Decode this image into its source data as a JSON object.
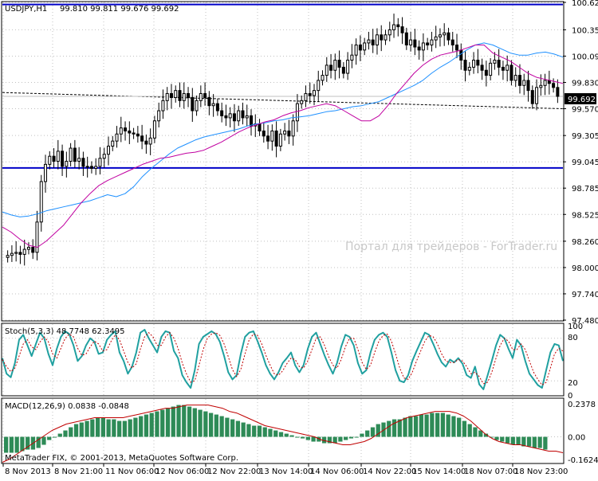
{
  "colors": {
    "background": "#ffffff",
    "grid": "#c0c0c0",
    "bull": "#ffffff",
    "bear": "#000000",
    "ma_fast": "#c000a0",
    "ma_slow": "#1e90ff",
    "hline": "#0000c8",
    "stoch_main": "#20a0a0",
    "stoch_signal": "#c00000",
    "macd_hist": "#2e8b57",
    "macd_signal": "#c00000",
    "price_label_bg": "#000000",
    "price_label_fg": "#ffffff",
    "watermark": "#c8c8c8"
  },
  "header": {
    "symbol_tf": "USDJPY,H1",
    "ohlc": "99.810 99.811 99.676 99.692"
  },
  "watermark": "Портал для трейдеров - ForTrader.ru",
  "copyright": "MetaTrader FIX, © 2001-2013, MetaQuotes Software Corp.",
  "chart_data": [
    {
      "type": "candlestick",
      "panel": "main",
      "title": "USDJPY,H1",
      "ylim": [
        97.48,
        100.621
      ],
      "y_ticks": [
        "100.621",
        "100.350",
        "100.090",
        "99.830",
        "99.570",
        "99.305",
        "99.045",
        "98.785",
        "98.525",
        "98.260",
        "98.000",
        "97.740",
        "97.480"
      ],
      "x_labels": [
        "8 Nov 2013",
        "8 Nov 21:00",
        "11 Nov 06:00",
        "12 Nov 06:00",
        "12 Nov 22:00",
        "13 Nov 14:00",
        "14 Nov 06:00",
        "14 Nov 22:00",
        "15 Nov 14:00",
        "18 Nov 07:00",
        "18 Nov 23:00"
      ],
      "current_price": "99.692",
      "horizontal_lines": [
        100.6,
        98.985
      ],
      "dashed_line": [
        99.73,
        99.57
      ],
      "close": [
        98.12,
        98.14,
        98.15,
        98.13,
        98.18,
        98.2,
        98.15,
        98.45,
        98.85,
        99.02,
        99.1,
        99.05,
        99.15,
        99.0,
        99.05,
        99.18,
        99.05,
        99.08,
        99.0,
        99.0,
        98.98,
        99.0,
        99.08,
        99.12,
        99.2,
        99.25,
        99.32,
        99.38,
        99.35,
        99.33,
        99.32,
        99.3,
        99.25,
        99.22,
        99.28,
        99.45,
        99.55,
        99.65,
        99.72,
        99.68,
        99.75,
        99.65,
        99.72,
        99.68,
        99.55,
        99.65,
        99.72,
        99.68,
        99.6,
        99.62,
        99.55,
        99.5,
        99.48,
        99.52,
        99.45,
        99.55,
        99.48,
        99.5,
        99.4,
        99.42,
        99.35,
        99.3,
        99.25,
        99.35,
        99.2,
        99.32,
        99.35,
        99.3,
        99.45,
        99.62,
        99.65,
        99.72,
        99.7,
        99.75,
        99.85,
        99.9,
        100.0,
        99.95,
        100.05,
        99.98,
        99.92,
        100.05,
        100.1,
        100.2,
        100.15,
        100.22,
        100.25,
        100.2,
        100.3,
        100.25,
        100.3,
        100.35,
        100.4,
        100.38,
        100.32,
        100.2,
        100.25,
        100.18,
        100.15,
        100.22,
        100.2,
        100.25,
        100.28,
        100.3,
        100.32,
        100.25,
        100.2,
        100.15,
        100.05,
        99.95,
        99.98,
        100.05,
        100.0,
        99.95,
        99.9,
        100.02,
        100.05,
        99.98,
        99.95,
        100.0,
        99.85,
        99.9,
        99.8,
        99.85,
        99.75,
        99.62,
        99.78,
        99.8,
        99.85,
        99.82,
        99.78,
        99.692
      ],
      "ma_fast": [
        98.4,
        98.35,
        98.28,
        98.22,
        98.2,
        98.26,
        98.34,
        98.42,
        98.53,
        98.64,
        98.73,
        98.81,
        98.86,
        98.9,
        98.94,
        98.98,
        99.02,
        99.05,
        99.08,
        99.09,
        99.11,
        99.13,
        99.14,
        99.16,
        99.2,
        99.24,
        99.29,
        99.34,
        99.38,
        99.41,
        99.44,
        99.46,
        99.5,
        99.53,
        99.55,
        99.58,
        99.6,
        99.62,
        99.6,
        99.55,
        99.5,
        99.45,
        99.45,
        99.5,
        99.6,
        99.72,
        99.82,
        99.92,
        100.0,
        100.06,
        100.1,
        100.12,
        100.14,
        100.17,
        100.2,
        100.2,
        100.12,
        100.08,
        100.04,
        99.98,
        99.92,
        99.88,
        99.86,
        99.84,
        99.82
      ],
      "ma_slow": [
        98.55,
        98.52,
        98.5,
        98.51,
        98.53,
        98.56,
        98.58,
        98.6,
        98.62,
        98.64,
        98.66,
        98.69,
        98.72,
        98.7,
        98.73,
        98.8,
        98.9,
        98.98,
        99.05,
        99.12,
        99.18,
        99.22,
        99.26,
        99.29,
        99.31,
        99.33,
        99.35,
        99.37,
        99.4,
        99.42,
        99.43,
        99.45,
        99.46,
        99.48,
        99.49,
        99.5,
        99.52,
        99.54,
        99.55,
        99.57,
        99.59,
        99.6,
        99.62,
        99.64,
        99.68,
        99.72,
        99.76,
        99.8,
        99.85,
        99.92,
        99.98,
        100.03,
        100.09,
        100.15,
        100.2,
        100.22,
        100.2,
        100.16,
        100.12,
        100.1,
        100.1,
        100.12,
        100.13,
        100.11,
        100.08
      ]
    },
    {
      "type": "line",
      "panel": "stochastic",
      "title": "Stoch(5,3,3) 48.7748 62.3495",
      "ylim": [
        0,
        100
      ],
      "y_ticks": [
        "100",
        "80",
        "20",
        "0"
      ],
      "levels": [
        80,
        20
      ],
      "main": [
        52,
        30,
        25,
        45,
        78,
        85,
        70,
        55,
        72,
        88,
        80,
        58,
        42,
        65,
        82,
        90,
        86,
        70,
        48,
        55,
        70,
        80,
        75,
        58,
        60,
        78,
        85,
        90,
        60,
        48,
        30,
        40,
        60,
        88,
        92,
        80,
        70,
        60,
        82,
        90,
        88,
        62,
        52,
        28,
        18,
        10,
        35,
        72,
        82,
        86,
        90,
        86,
        75,
        55,
        32,
        22,
        28,
        58,
        82,
        88,
        90,
        76,
        60,
        42,
        30,
        22,
        32,
        45,
        52,
        60,
        42,
        32,
        42,
        65,
        82,
        88,
        72,
        56,
        42,
        30,
        45,
        68,
        85,
        82,
        70,
        45,
        30,
        35,
        60,
        78,
        85,
        88,
        82,
        60,
        35,
        20,
        18,
        28,
        48,
        62,
        75,
        88,
        85,
        72,
        58,
        46,
        40,
        50,
        46,
        52,
        44,
        28,
        24,
        40,
        15,
        8,
        28,
        48,
        70,
        85,
        80,
        65,
        52,
        78,
        70,
        48,
        30,
        22,
        14,
        10,
        35,
        60,
        72,
        70,
        48
      ],
      "signal": [
        50,
        40,
        33,
        38,
        55,
        72,
        78,
        68,
        64,
        75,
        82,
        75,
        58,
        52,
        66,
        80,
        86,
        82,
        66,
        56,
        58,
        68,
        76,
        72,
        62,
        64,
        76,
        85,
        78,
        62,
        46,
        38,
        44,
        65,
        82,
        88,
        82,
        70,
        70,
        82,
        88,
        80,
        66,
        45,
        30,
        18,
        20,
        42,
        64,
        80,
        86,
        88,
        84,
        72,
        54,
        36,
        26,
        36,
        58,
        78,
        86,
        84,
        72,
        56,
        42,
        30,
        28,
        34,
        44,
        52,
        50,
        40,
        38,
        48,
        64,
        80,
        82,
        70,
        54,
        42,
        38,
        50,
        68,
        80,
        80,
        64,
        46,
        36,
        42,
        60,
        76,
        84,
        86,
        76,
        58,
        38,
        24,
        22,
        32,
        48,
        62,
        76,
        84,
        82,
        72,
        58,
        48,
        46,
        46,
        50,
        48,
        40,
        30,
        32,
        26,
        16,
        18,
        32,
        52,
        70,
        80,
        76,
        64,
        64,
        72,
        64,
        48,
        32,
        22,
        14,
        18,
        38,
        58,
        66,
        62
      ]
    },
    {
      "type": "bar+line",
      "panel": "macd",
      "title": "MACD(12,26,9) 0.0838 -0.0848",
      "ylim": [
        -0.1624,
        0.2378
      ],
      "y_ticks": [
        "0.2378",
        "0.00",
        "-0.1624"
      ],
      "histogram": [
        -0.1,
        -0.1,
        -0.1,
        -0.09,
        -0.08,
        -0.08,
        -0.07,
        -0.05,
        -0.02,
        0.0,
        0.02,
        0.04,
        0.06,
        0.08,
        0.09,
        0.1,
        0.11,
        0.12,
        0.12,
        0.11,
        0.11,
        0.1,
        0.1,
        0.11,
        0.12,
        0.13,
        0.14,
        0.15,
        0.16,
        0.17,
        0.18,
        0.19,
        0.2,
        0.2,
        0.19,
        0.18,
        0.17,
        0.16,
        0.15,
        0.14,
        0.13,
        0.12,
        0.11,
        0.1,
        0.09,
        0.08,
        0.07,
        0.07,
        0.06,
        0.05,
        0.04,
        0.03,
        0.02,
        0.01,
        0.0,
        -0.01,
        -0.02,
        -0.03,
        -0.03,
        -0.04,
        -0.04,
        -0.04,
        -0.03,
        -0.02,
        -0.01,
        0.0,
        0.02,
        0.04,
        0.06,
        0.08,
        0.09,
        0.1,
        0.11,
        0.11,
        0.12,
        0.13,
        0.13,
        0.14,
        0.14,
        0.15,
        0.15,
        0.15,
        0.14,
        0.13,
        0.12,
        0.1,
        0.08,
        0.06,
        0.04,
        0.02,
        0.0,
        -0.02,
        -0.03,
        -0.04,
        -0.05,
        -0.05,
        -0.06,
        -0.06,
        -0.07,
        -0.07,
        -0.08
      ],
      "signal": [
        -0.16,
        -0.14,
        -0.11,
        -0.08,
        -0.05,
        -0.02,
        0.01,
        0.04,
        0.06,
        0.08,
        0.09,
        0.1,
        0.11,
        0.12,
        0.12,
        0.12,
        0.12,
        0.12,
        0.13,
        0.14,
        0.15,
        0.16,
        0.17,
        0.18,
        0.18,
        0.19,
        0.2,
        0.2,
        0.2,
        0.2,
        0.19,
        0.18,
        0.16,
        0.15,
        0.13,
        0.11,
        0.09,
        0.07,
        0.06,
        0.05,
        0.04,
        0.03,
        0.02,
        0.01,
        0.0,
        -0.02,
        -0.03,
        -0.04,
        -0.05,
        -0.05,
        -0.04,
        -0.03,
        -0.01,
        0.02,
        0.05,
        0.08,
        0.1,
        0.12,
        0.13,
        0.14,
        0.15,
        0.16,
        0.16,
        0.16,
        0.15,
        0.13,
        0.1,
        0.06,
        0.02,
        -0.01,
        -0.03,
        -0.04,
        -0.05,
        -0.05,
        -0.06,
        -0.07,
        -0.08,
        -0.09,
        -0.09,
        -0.1
      ]
    }
  ]
}
